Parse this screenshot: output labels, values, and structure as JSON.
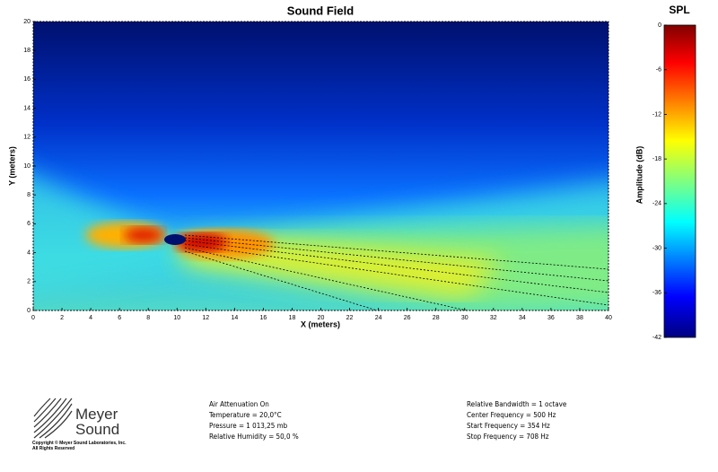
{
  "chart_data": {
    "type": "field",
    "title": "Sound Field",
    "x_label": "X (meters)",
    "y_label": "Y (meters)",
    "xlim": [
      0,
      40
    ],
    "ylim": [
      0,
      20
    ],
    "xticks": [
      0,
      2,
      4,
      6,
      8,
      10,
      12,
      14,
      16,
      18,
      20,
      22,
      24,
      26,
      28,
      30,
      32,
      34,
      36,
      38,
      40
    ],
    "yticks": [
      0,
      2,
      4,
      6,
      8,
      10,
      12,
      14,
      16,
      18,
      20
    ],
    "colorbar": {
      "title": "SPL",
      "label": "Amplitude (dB)",
      "lim": [
        -42,
        0
      ],
      "ticks": [
        0,
        -6,
        -12,
        -18,
        -24,
        -30,
        -36,
        -42
      ]
    }
  },
  "footer": {
    "logo": [
      "Meyer",
      "Sound"
    ],
    "copyright": [
      "Copyright © Meyer Sound Laboratories, Inc.",
      "All Rights Reserved"
    ],
    "air": [
      "Air Attenuation On",
      "Temperature = 20,0°C",
      "Pressure = 1 013,25  mb",
      "Relative Humidity = 50,0 %"
    ],
    "band": [
      "Relative Bandwidth = 1 octave",
      "Center Frequency = 500 Hz",
      "Start Frequency = 354 Hz",
      "Stop Frequency = 708 Hz"
    ]
  }
}
